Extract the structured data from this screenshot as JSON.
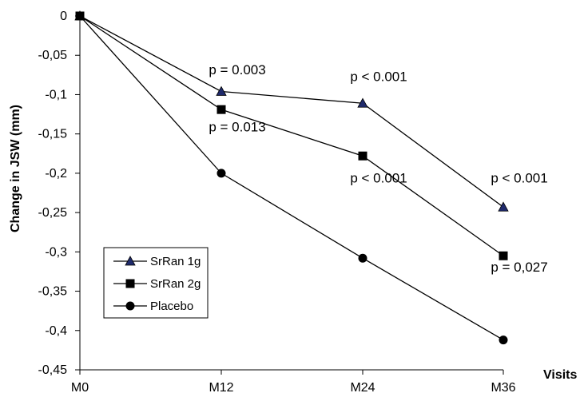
{
  "chart_data": {
    "type": "line",
    "categories": [
      "M0",
      "M12",
      "M24",
      "M36"
    ],
    "xlabel": "Visits",
    "ylabel": "Change in JSW (mm)",
    "ylim": [
      -0.45,
      0
    ],
    "y_ticks": [
      "0",
      "-0,05",
      "-0,1",
      "-0,15",
      "-0,2",
      "-0,25",
      "-0,3",
      "-0,35",
      "-0,4",
      "-0,45"
    ],
    "grid": false,
    "legend_position": "bottom-left",
    "series": [
      {
        "name": "SrRan 1g",
        "marker": "triangle",
        "values": [
          0,
          -0.096,
          -0.111,
          -0.243
        ]
      },
      {
        "name": "SrRan 2g",
        "marker": "square",
        "values": [
          0,
          -0.119,
          -0.178,
          -0.305
        ]
      },
      {
        "name": "Placebo",
        "marker": "circle",
        "values": [
          0,
          -0.2,
          -0.308,
          -0.412
        ]
      }
    ],
    "annotations": [
      {
        "text": "p = 0.003",
        "x": "M12",
        "y": -0.074
      },
      {
        "text": "p = 0.013",
        "x": "M12",
        "y": -0.147
      },
      {
        "text": "p < 0.001",
        "x": "M24",
        "y": -0.083
      },
      {
        "text": "p < 0.001",
        "x": "M24",
        "y": -0.212
      },
      {
        "text": "p < 0.001",
        "x": "M36",
        "y": -0.212
      },
      {
        "text": "p = 0,027",
        "x": "M36",
        "y": -0.325
      }
    ]
  }
}
